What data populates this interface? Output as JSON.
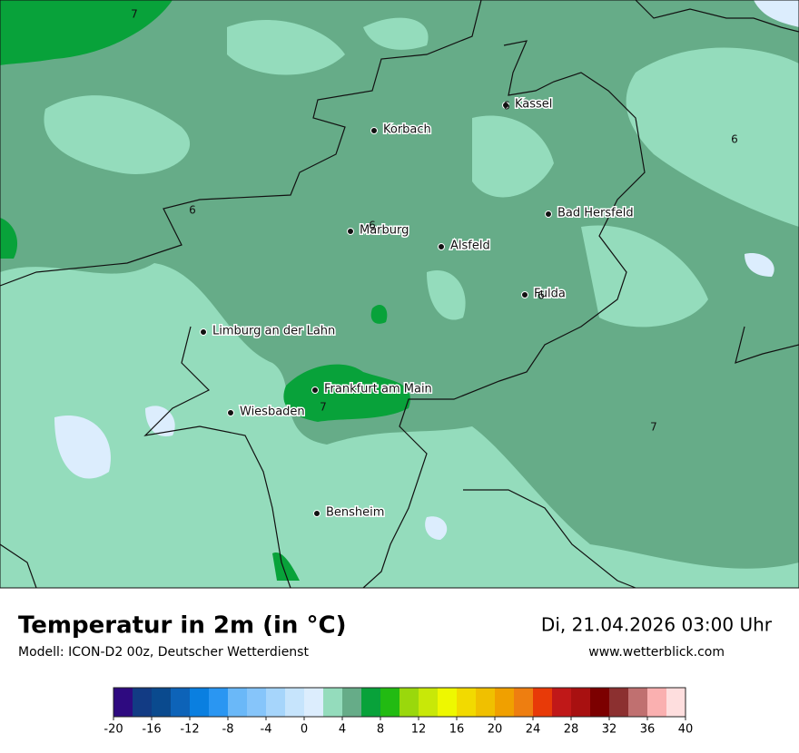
{
  "header": {
    "title": "Temperatur in 2m (in °C)",
    "model": "Modell: ICON-D2 00z, Deutscher Wetterdienst",
    "datetime": "Di, 21.04.2026 03:00 Uhr",
    "website": "www.wetterblick.com"
  },
  "map": {
    "cities": [
      "Kassel",
      "Korbach",
      "Marburg",
      "Alsfeld",
      "Bad Hersfeld",
      "Fulda",
      "Limburg an der Lahn",
      "Frankfurt am Main",
      "Wiesbaden",
      "Bensheim"
    ],
    "contour_labels": [
      7,
      6,
      6,
      6,
      6,
      6,
      7,
      7
    ]
  },
  "legend": {
    "lim": [
      -20,
      40
    ],
    "ticks": [
      -20,
      -16,
      -12,
      -8,
      -4,
      0,
      4,
      8,
      12,
      16,
      20,
      24,
      28,
      32,
      36,
      40
    ],
    "colors": [
      "#2e0a80",
      "#123b84",
      "#0a4a8e",
      "#0d63b8",
      "#0a7fe0",
      "#2a96f2",
      "#6ab8f8",
      "#86c5fa",
      "#a6d5fb",
      "#c6e4fc",
      "#dcedfd",
      "#94dcbc",
      "#66ac88",
      "#08a23a",
      "#22bb12",
      "#9ad80c",
      "#c8e808",
      "#eef800",
      "#f2da00",
      "#f0c000",
      "#f0a000",
      "#ee7e10",
      "#e83a08",
      "#c01818",
      "#a81010",
      "#7c0000",
      "#8c3030",
      "#c07070",
      "#fab0b0",
      "#fedede"
    ]
  }
}
